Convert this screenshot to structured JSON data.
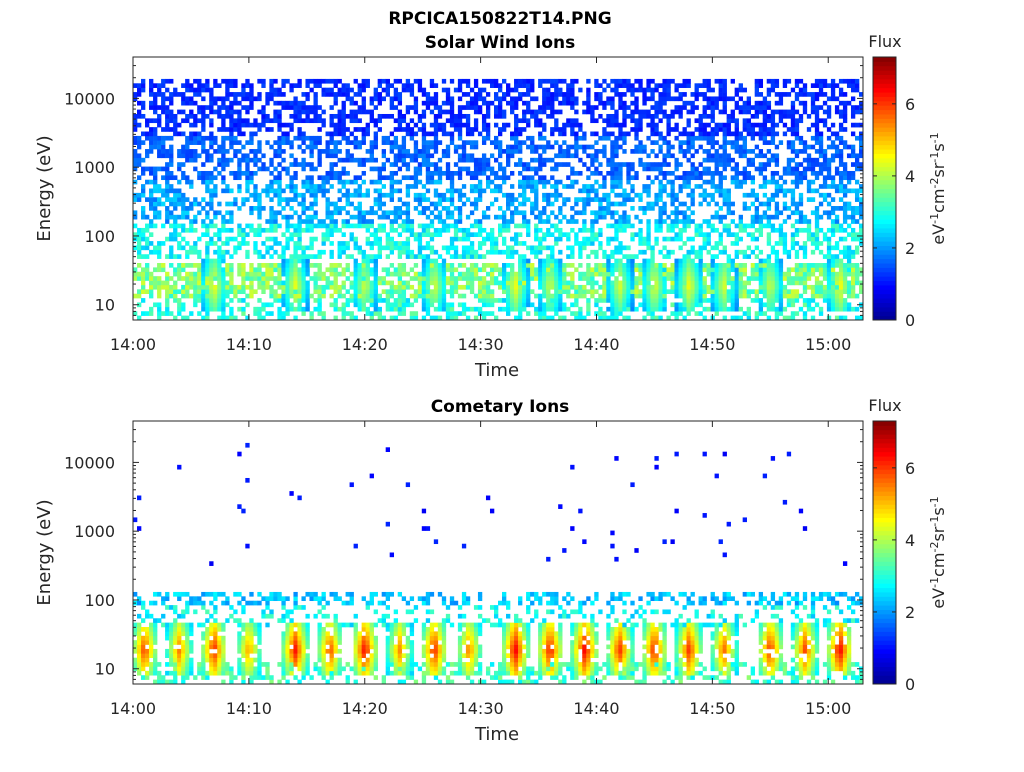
{
  "figure": {
    "title": "RPCICA150822T14.PNG",
    "colormap": [
      "#00008f",
      "#0000ff",
      "#0080ff",
      "#00ffff",
      "#80ff80",
      "#ffff00",
      "#ff8000",
      "#ff0000",
      "#800000"
    ]
  },
  "chart_data": [
    {
      "type": "heatmap",
      "title": "Solar Wind Ions",
      "xlabel": "Time",
      "ylabel": "Energy (eV)",
      "y_scale": "log",
      "xlim": [
        "14:00",
        "15:03"
      ],
      "ylim": [
        6,
        40000
      ],
      "x_ticks": [
        "14:00",
        "14:10",
        "14:20",
        "14:30",
        "14:40",
        "14:50",
        "15:00"
      ],
      "y_ticks": [
        "10",
        "100",
        "1000",
        "10000"
      ],
      "colorbar": {
        "title": "Flux",
        "label": "eV-1cm-2sr-1s-1",
        "range": [
          0,
          7.3
        ],
        "ticks": [
          "0",
          "2",
          "4",
          "6"
        ]
      },
      "bands": [
        {
          "e_min": 3000,
          "e_max": 20000,
          "flux": 1.2,
          "density": 0.55
        },
        {
          "e_min": 700,
          "e_max": 3000,
          "flux": 1.6,
          "density": 0.55
        },
        {
          "e_min": 150,
          "e_max": 700,
          "flux": 2.1,
          "density": 0.5
        },
        {
          "e_min": 50,
          "e_max": 150,
          "flux": 2.8,
          "density": 0.55
        },
        {
          "e_min": 12,
          "e_max": 40,
          "flux": 3.6,
          "density": 0.7
        },
        {
          "e_min": 6,
          "e_max": 12,
          "flux": 3.0,
          "density": 0.45
        }
      ],
      "bursts": [
        {
          "time": "14:07",
          "flux": 4.6
        },
        {
          "time": "14:14",
          "flux": 4.5
        },
        {
          "time": "14:20",
          "flux": 4.3
        },
        {
          "time": "14:26",
          "flux": 4.4
        },
        {
          "time": "14:33",
          "flux": 4.6
        },
        {
          "time": "14:36",
          "flux": 4.3
        },
        {
          "time": "14:42",
          "flux": 4.4
        },
        {
          "time": "14:45",
          "flux": 4.5
        },
        {
          "time": "14:48",
          "flux": 4.6
        },
        {
          "time": "14:51",
          "flux": 4.4
        },
        {
          "time": "14:55",
          "flux": 4.3
        },
        {
          "time": "15:01",
          "flux": 4.7
        }
      ]
    },
    {
      "type": "heatmap",
      "title": "Cometary Ions",
      "xlabel": "Time",
      "ylabel": "Energy (eV)",
      "y_scale": "log",
      "xlim": [
        "14:00",
        "15:03"
      ],
      "ylim": [
        6,
        40000
      ],
      "x_ticks": [
        "14:00",
        "14:10",
        "14:20",
        "14:30",
        "14:40",
        "14:50",
        "15:00"
      ],
      "y_ticks": [
        "10",
        "100",
        "1000",
        "10000"
      ],
      "colorbar": {
        "title": "Flux",
        "label": "eV-1cm-2sr-1s-1",
        "range": [
          0,
          7.3
        ],
        "ticks": [
          "0",
          "2",
          "4",
          "6"
        ]
      },
      "bands": [
        {
          "e_min": 300,
          "e_max": 20000,
          "flux": 1.0,
          "density": 0.012
        },
        {
          "e_min": 80,
          "e_max": 130,
          "flux": 2.3,
          "density": 0.45
        },
        {
          "e_min": 40,
          "e_max": 80,
          "flux": 2.8,
          "density": 0.25
        },
        {
          "e_min": 6,
          "e_max": 12,
          "flux": 3.2,
          "density": 0.4
        }
      ],
      "bursts": [
        {
          "time": "14:01",
          "flux": 6.1
        },
        {
          "time": "14:04",
          "flux": 5.6
        },
        {
          "time": "14:07",
          "flux": 6.3
        },
        {
          "time": "14:10",
          "flux": 5.4
        },
        {
          "time": "14:14",
          "flux": 6.4
        },
        {
          "time": "14:17",
          "flux": 6.0
        },
        {
          "time": "14:20",
          "flux": 6.5
        },
        {
          "time": "14:23",
          "flux": 5.5
        },
        {
          "time": "14:26",
          "flux": 6.3
        },
        {
          "time": "14:29",
          "flux": 5.6
        },
        {
          "time": "14:33",
          "flux": 6.6
        },
        {
          "time": "14:36",
          "flux": 6.4
        },
        {
          "time": "14:39",
          "flux": 6.6
        },
        {
          "time": "14:42",
          "flux": 6.2
        },
        {
          "time": "14:45",
          "flux": 6.3
        },
        {
          "time": "14:48",
          "flux": 6.2
        },
        {
          "time": "14:51",
          "flux": 5.8
        },
        {
          "time": "14:55",
          "flux": 6.2
        },
        {
          "time": "14:58",
          "flux": 6.0
        },
        {
          "time": "15:01",
          "flux": 6.6
        }
      ]
    }
  ]
}
